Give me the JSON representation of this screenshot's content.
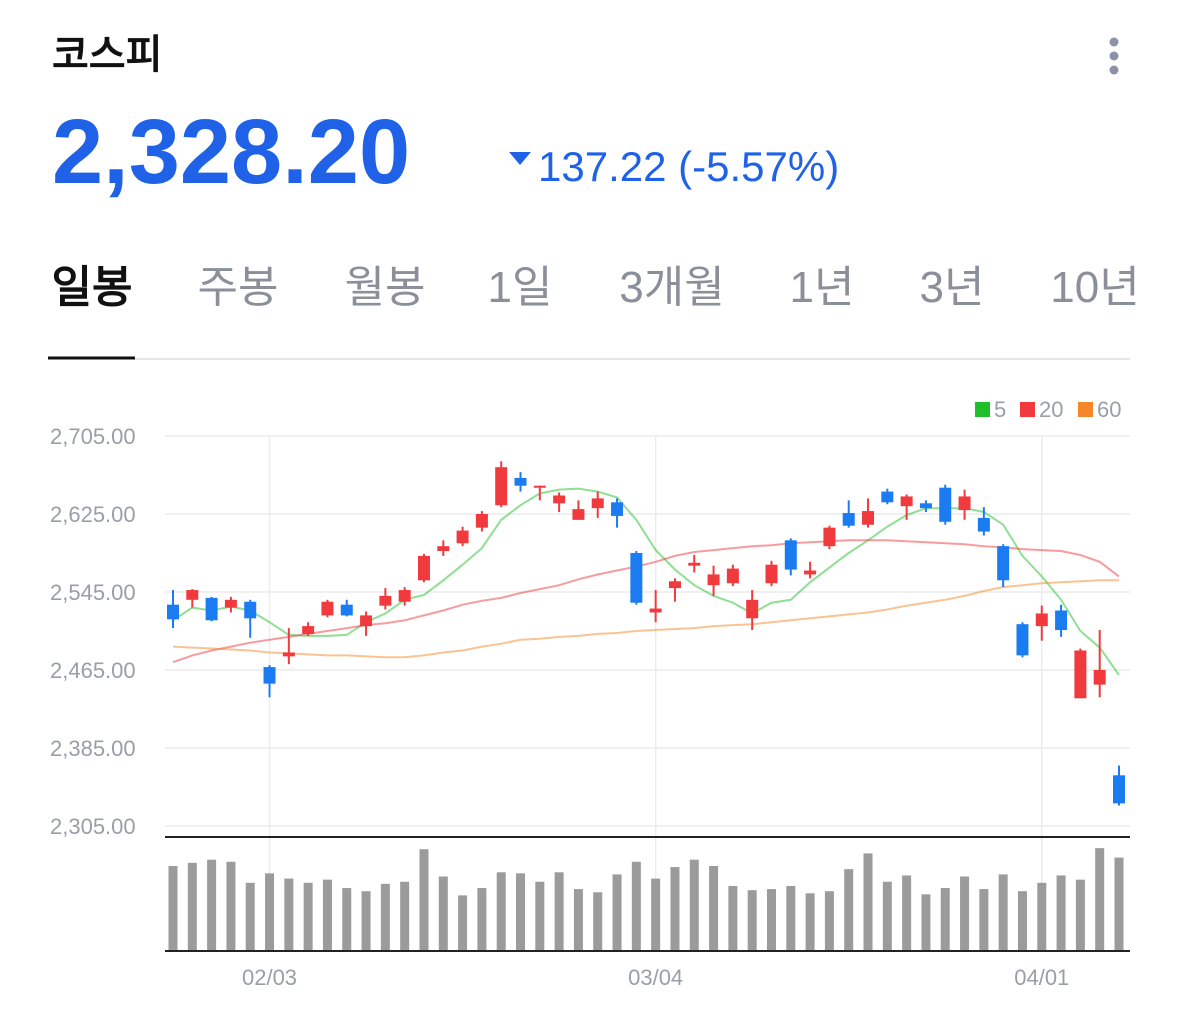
{
  "header": {
    "title": "코스피",
    "price": "2,328.20",
    "change": "137.22 (-5.57%)"
  },
  "tabs": [
    "일봉",
    "주봉",
    "월봉",
    "1일",
    "3개월",
    "1년",
    "3년",
    "10년"
  ],
  "chart_data": {
    "type": "candlestick",
    "categories": [
      null,
      null,
      null,
      null,
      null,
      "02/03",
      null,
      null,
      null,
      null,
      null,
      null,
      null,
      null,
      null,
      null,
      null,
      null,
      null,
      null,
      null,
      null,
      null,
      null,
      null,
      "03/04",
      null,
      null,
      null,
      null,
      null,
      null,
      null,
      null,
      null,
      null,
      null,
      null,
      null,
      null,
      null,
      null,
      null,
      null,
      null,
      "04/01",
      null,
      null,
      null,
      null
    ],
    "open": [
      2532,
      2537,
      2539,
      2529,
      2535,
      2468,
      2479,
      2502,
      2521,
      2532,
      2510,
      2531,
      2535,
      2557,
      2587,
      2595,
      2611,
      2634,
      2662,
      2652,
      2636,
      2619,
      2631,
      2637,
      2585,
      2524,
      2549,
      2572,
      2552,
      2554,
      2518,
      2554,
      2598,
      2563,
      2592,
      2626,
      2614,
      2648,
      2633,
      2636,
      2652,
      2629,
      2621,
      2592,
      2512,
      2510,
      2526,
      2436,
      2450,
      2357
    ],
    "high": [
      2547,
      2548,
      2540,
      2540,
      2537,
      2470,
      2508,
      2514,
      2537,
      2537,
      2525,
      2549,
      2550,
      2584,
      2598,
      2612,
      2628,
      2679,
      2668,
      2654,
      2647,
      2639,
      2648,
      2641,
      2587,
      2547,
      2559,
      2583,
      2572,
      2573,
      2547,
      2577,
      2600,
      2576,
      2613,
      2639,
      2641,
      2651,
      2645,
      2639,
      2655,
      2650,
      2632,
      2594,
      2514,
      2531,
      2532,
      2487,
      2506,
      2367
    ],
    "low": [
      2508,
      2529,
      2515,
      2524,
      2498,
      2437,
      2471,
      2500,
      2519,
      2520,
      2500,
      2527,
      2531,
      2555,
      2582,
      2592,
      2607,
      2632,
      2648,
      2639,
      2627,
      2619,
      2621,
      2611,
      2532,
      2514,
      2535,
      2565,
      2541,
      2551,
      2506,
      2551,
      2562,
      2559,
      2589,
      2611,
      2611,
      2635,
      2619,
      2627,
      2614,
      2619,
      2603,
      2550,
      2478,
      2495,
      2499,
      2436,
      2437,
      2326
    ],
    "close": [
      2517,
      2547,
      2516,
      2537,
      2518,
      2451,
      2483,
      2510,
      2535,
      2521,
      2521,
      2541,
      2547,
      2582,
      2592,
      2608,
      2625,
      2673,
      2654,
      2654,
      2644,
      2630,
      2641,
      2623,
      2534,
      2528,
      2556,
      2575,
      2563,
      2569,
      2537,
      2573,
      2568,
      2567,
      2611,
      2613,
      2628,
      2637,
      2643,
      2631,
      2617,
      2643,
      2607,
      2557,
      2480,
      2523,
      2506,
      2485,
      2465,
      2328.2
    ],
    "up_color": "#f03a3e",
    "down_color": "#1b7cf2",
    "series": [
      {
        "name": "5",
        "color": "#1fbf2a",
        "values": [
          2516,
          2529,
          2526,
          2530,
          2526,
          2514,
          2501,
          2500,
          2500,
          2501,
          2514,
          2523,
          2537,
          2542,
          2557,
          2573,
          2590,
          2619,
          2634,
          2646,
          2650,
          2651,
          2648,
          2642,
          2619,
          2588,
          2568,
          2552,
          2541,
          2534,
          2523,
          2534,
          2537,
          2555,
          2570,
          2585,
          2598,
          2612,
          2624,
          2631,
          2631,
          2631,
          2627,
          2614,
          2582,
          2561,
          2537,
          2505,
          2488,
          2460
        ]
      },
      {
        "name": "20",
        "color": "#f03a3e",
        "values": [
          2473,
          2480,
          2485,
          2489,
          2493,
          2496,
          2499,
          2502,
          2505,
          2508,
          2511,
          2513,
          2516,
          2521,
          2526,
          2532,
          2536,
          2539,
          2544,
          2548,
          2552,
          2558,
          2563,
          2567,
          2571,
          2576,
          2582,
          2586,
          2588,
          2590,
          2592,
          2593,
          2595,
          2596,
          2597,
          2598,
          2598,
          2598,
          2597,
          2596,
          2595,
          2594,
          2592,
          2591,
          2589,
          2588,
          2587,
          2583,
          2576,
          2561
        ]
      },
      {
        "name": "60",
        "color": "#f5872a",
        "values": [
          2489,
          2488,
          2487,
          2486,
          2485,
          2483,
          2482,
          2481,
          2480,
          2480,
          2479,
          2478,
          2478,
          2480,
          2483,
          2485,
          2489,
          2492,
          2496,
          2497,
          2499,
          2500,
          2502,
          2503,
          2505,
          2506,
          2507,
          2508,
          2510,
          2511,
          2512,
          2514,
          2516,
          2518,
          2520,
          2522,
          2524,
          2527,
          2531,
          2534,
          2537,
          2541,
          2546,
          2550,
          2552,
          2554,
          2555,
          2556,
          2557,
          2557
        ]
      }
    ],
    "volume": {
      "color": "#9b9b9b",
      "values": [
        80,
        83,
        86,
        84,
        64,
        73,
        68,
        64,
        67,
        59,
        56,
        63,
        65,
        96,
        70,
        52,
        59,
        74,
        73,
        65,
        74,
        58,
        55,
        72,
        84,
        68,
        79,
        86,
        80,
        61,
        57,
        58,
        61,
        54,
        56,
        77,
        92,
        65,
        71,
        53,
        59,
        70,
        58,
        72,
        56,
        64,
        71,
        67,
        97,
        88
      ]
    },
    "ylim": [
      2305,
      2705
    ],
    "yticks": [
      {
        "value": 2705,
        "label": "2,705.00"
      },
      {
        "value": 2625,
        "label": "2,625.00"
      },
      {
        "value": 2545,
        "label": "2,545.00"
      },
      {
        "value": 2465,
        "label": "2,465.00"
      },
      {
        "value": 2385,
        "label": "2,385.00"
      },
      {
        "value": 2305,
        "label": "2,305.00"
      }
    ],
    "grid": true,
    "legend_position": "top-right"
  }
}
